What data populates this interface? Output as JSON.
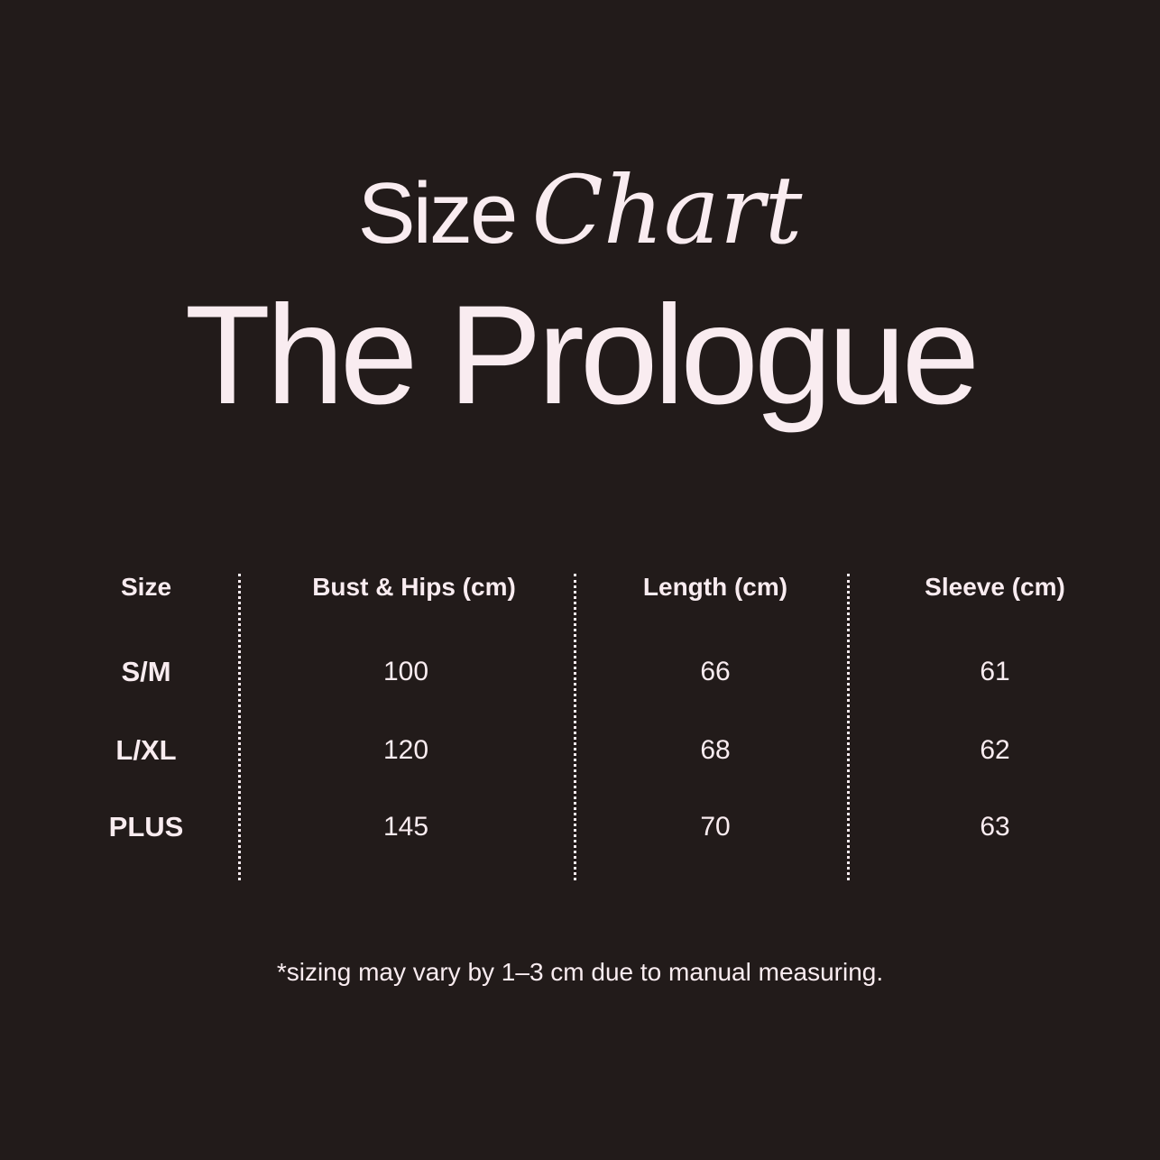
{
  "title": {
    "line1_plain": "Size",
    "line1_script": "Chart",
    "line2": "The Prologue"
  },
  "table": {
    "headers": [
      "Size",
      "Bust & Hips (cm)",
      "Length (cm)",
      "Sleeve (cm)"
    ],
    "rows": [
      [
        "S/M",
        "100",
        "66",
        "61"
      ],
      [
        "L/XL",
        "120",
        "68",
        "62"
      ],
      [
        "PLUS",
        "145",
        "70",
        "63"
      ]
    ]
  },
  "footnote": "*sizing may vary by 1–3 cm due to manual measuring.",
  "colors": {
    "background": "#221b1a",
    "text": "#f9ecf0"
  }
}
